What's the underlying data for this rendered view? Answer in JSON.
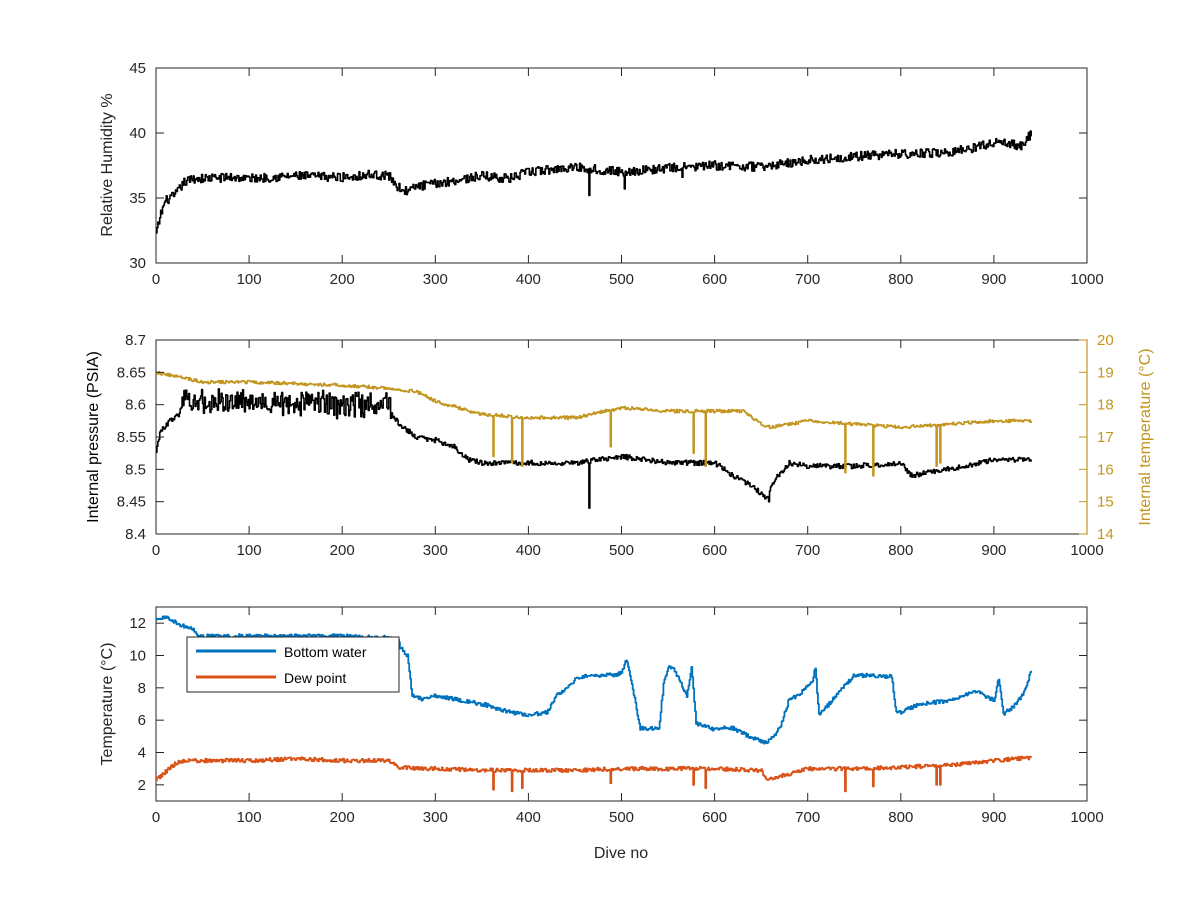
{
  "figure": {
    "xlabel": "Dive no"
  },
  "chart_data": [
    {
      "type": "line",
      "panel": "top",
      "title": "",
      "xlabel": "",
      "ylabel": "Relative Humidity %",
      "xlim": [
        0,
        1000
      ],
      "ylim": [
        30,
        45
      ],
      "xticks": [
        0,
        100,
        200,
        300,
        400,
        500,
        600,
        700,
        800,
        900,
        1000
      ],
      "yticks": [
        30,
        35,
        40,
        45
      ],
      "grid": false,
      "series": [
        {
          "color": "#000000",
          "x": [
            0,
            5,
            10,
            20,
            30,
            40,
            50,
            80,
            100,
            150,
            200,
            230,
            250,
            260,
            270,
            280,
            300,
            350,
            380,
            400,
            450,
            500,
            550,
            600,
            650,
            700,
            750,
            800,
            850,
            880,
            900,
            930,
            940
          ],
          "y": [
            32.2,
            33.8,
            34.8,
            35.2,
            36.2,
            36.5,
            36.5,
            36.6,
            36.5,
            36.7,
            36.6,
            36.8,
            36.7,
            35.8,
            35.5,
            35.9,
            36.1,
            36.7,
            36.5,
            37.0,
            37.4,
            37.0,
            37.3,
            37.5,
            37.4,
            37.9,
            38.2,
            38.4,
            38.5,
            38.9,
            39.3,
            39.0,
            40.0
          ],
          "noise": 0.35,
          "dips": [
            [
              465,
              35.2
            ],
            [
              503,
              35.7
            ],
            [
              565,
              36.6
            ]
          ]
        }
      ]
    },
    {
      "type": "line",
      "panel": "middle",
      "title": "",
      "xlabel": "",
      "ylabel": "Internal pressure (PSIA)",
      "ylabel_right": "Internal temperature (°C)",
      "xlim": [
        0,
        1000
      ],
      "ylim": [
        8.4,
        8.7
      ],
      "ylim_right": [
        14,
        20
      ],
      "xticks": [
        0,
        100,
        200,
        300,
        400,
        500,
        600,
        700,
        800,
        900,
        1000
      ],
      "yticks": [
        8.4,
        8.45,
        8.5,
        8.55,
        8.6,
        8.65,
        8.7
      ],
      "yticks_right": [
        14,
        15,
        16,
        17,
        18,
        19,
        20
      ],
      "grid": false,
      "series": [
        {
          "axis": "left",
          "color": "#000000",
          "x": [
            0,
            5,
            15,
            25,
            28,
            100,
            200,
            250,
            255,
            265,
            280,
            300,
            320,
            335,
            350,
            400,
            450,
            500,
            550,
            600,
            620,
            640,
            655,
            665,
            680,
            700,
            750,
            800,
            810,
            850,
            900,
            940
          ],
          "y": [
            8.53,
            8.56,
            8.575,
            8.585,
            8.605,
            8.605,
            8.6,
            8.6,
            8.58,
            8.565,
            8.55,
            8.545,
            8.535,
            8.515,
            8.51,
            8.51,
            8.51,
            8.52,
            8.51,
            8.51,
            8.49,
            8.475,
            8.455,
            8.485,
            8.51,
            8.505,
            8.505,
            8.51,
            8.49,
            8.5,
            8.515,
            8.515
          ],
          "noise": 0.004,
          "burst_range": [
            28,
            252
          ],
          "burst_amp": 0.018,
          "dips": [
            [
              465,
              8.44
            ],
            [
              658,
              8.45
            ]
          ]
        },
        {
          "axis": "right",
          "color": "#c3951e",
          "x": [
            0,
            50,
            100,
            200,
            250,
            280,
            300,
            350,
            400,
            450,
            500,
            550,
            600,
            630,
            650,
            660,
            700,
            750,
            800,
            850,
            900,
            940
          ],
          "y": [
            19.0,
            18.7,
            18.7,
            18.6,
            18.5,
            18.4,
            18.1,
            17.7,
            17.6,
            17.6,
            17.9,
            17.8,
            17.8,
            17.8,
            17.4,
            17.3,
            17.5,
            17.4,
            17.3,
            17.4,
            17.5,
            17.5
          ],
          "noise": 0.05,
          "dips": [
            [
              362,
              16.4
            ],
            [
              382,
              16.2
            ],
            [
              393,
              16.1
            ],
            [
              488,
              16.7
            ],
            [
              577,
              16.5
            ],
            [
              590,
              16.1
            ],
            [
              740,
              15.9
            ],
            [
              770,
              15.8
            ],
            [
              838,
              16.1
            ],
            [
              842,
              16.2
            ]
          ]
        }
      ]
    },
    {
      "type": "line",
      "panel": "bottom",
      "title": "",
      "xlabel": "Dive no",
      "ylabel": "Temperature (°C)",
      "xlim": [
        0,
        1000
      ],
      "ylim": [
        1,
        13
      ],
      "xticks": [
        0,
        100,
        200,
        300,
        400,
        500,
        600,
        700,
        800,
        900,
        1000
      ],
      "yticks": [
        2,
        4,
        6,
        8,
        10,
        12
      ],
      "grid": false,
      "legend": "top-left",
      "series": [
        {
          "name": "Bottom water",
          "color": "#0072bd",
          "x": [
            0,
            15,
            25,
            40,
            45,
            100,
            150,
            200,
            250,
            260,
            262,
            270,
            275,
            285,
            300,
            350,
            380,
            400,
            420,
            430,
            450,
            460,
            470,
            490,
            500,
            505,
            510,
            520,
            540,
            545,
            550,
            555,
            570,
            575,
            580,
            590,
            600,
            610,
            620,
            640,
            655,
            660,
            670,
            680,
            690,
            705,
            708,
            712,
            750,
            780,
            790,
            795,
            800,
            820,
            850,
            880,
            900,
            905,
            910,
            920,
            930,
            940
          ],
          "y": [
            12.3,
            12.3,
            11.9,
            11.6,
            11.2,
            11.2,
            11.2,
            11.2,
            11.1,
            11.0,
            10.5,
            10.0,
            7.5,
            7.3,
            7.5,
            7.0,
            6.5,
            6.3,
            6.5,
            7.5,
            8.5,
            8.7,
            8.7,
            8.8,
            8.9,
            9.8,
            8.5,
            5.5,
            5.5,
            8.2,
            9.3,
            9.3,
            7.5,
            9.3,
            5.8,
            5.6,
            5.4,
            5.5,
            5.5,
            4.9,
            4.6,
            4.8,
            5.5,
            7.3,
            7.5,
            8.5,
            9.2,
            6.3,
            8.8,
            8.7,
            8.7,
            6.5,
            6.5,
            7.0,
            7.2,
            7.8,
            7.2,
            8.6,
            6.4,
            6.8,
            7.5,
            9.0
          ],
          "noise": 0.12
        },
        {
          "name": "Dew point",
          "color": "#d95319",
          "x": [
            0,
            10,
            20,
            30,
            50,
            100,
            150,
            200,
            250,
            260,
            280,
            300,
            350,
            400,
            450,
            500,
            550,
            600,
            650,
            655,
            700,
            750,
            800,
            850,
            900,
            940
          ],
          "y": [
            2.3,
            2.8,
            3.3,
            3.5,
            3.5,
            3.5,
            3.6,
            3.5,
            3.5,
            3.1,
            3.0,
            3.0,
            2.9,
            2.9,
            2.9,
            3.0,
            3.0,
            3.0,
            2.9,
            2.3,
            3.0,
            3.0,
            3.1,
            3.2,
            3.5,
            3.7
          ],
          "noise": 0.12,
          "dips": [
            [
              362,
              1.7
            ],
            [
              382,
              1.6
            ],
            [
              393,
              1.8
            ],
            [
              488,
              2.1
            ],
            [
              577,
              2.0
            ],
            [
              590,
              1.8
            ],
            [
              740,
              1.6
            ],
            [
              770,
              1.9
            ],
            [
              838,
              2.0
            ],
            [
              842,
              2.0
            ]
          ]
        }
      ]
    }
  ]
}
